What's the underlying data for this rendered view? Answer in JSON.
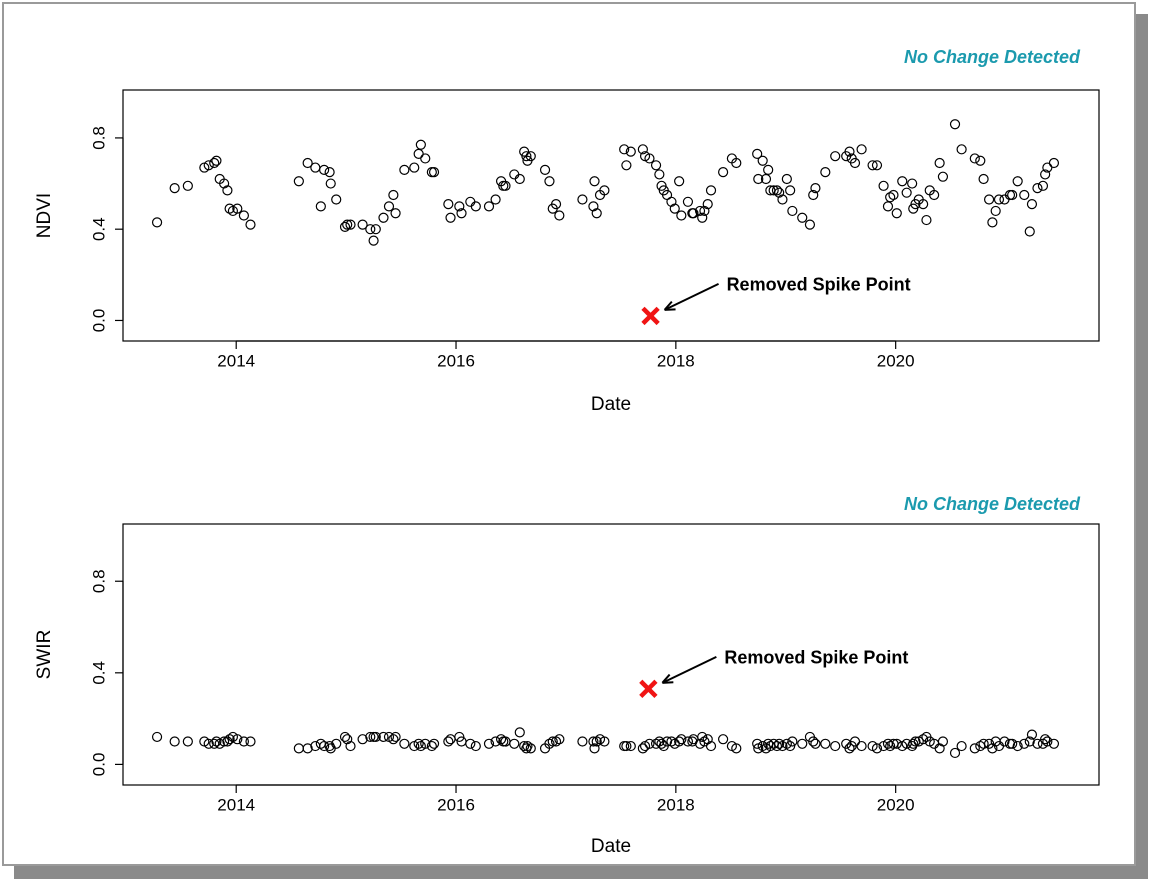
{
  "chart_data": [
    {
      "type": "scatter",
      "status": "No Change Detected",
      "xlabel": "Date",
      "ylabel": "NDVI",
      "color": "#000000",
      "x": [
        2013.28,
        2013.44,
        2013.56,
        2013.71,
        2013.75,
        2013.8,
        2013.82,
        2013.85,
        2013.89,
        2013.92,
        2013.94,
        2013.97,
        2014.01,
        2014.07,
        2014.13,
        2014.57,
        2014.65,
        2014.72,
        2014.77,
        2014.8,
        2014.85,
        2014.86,
        2014.91,
        2014.99,
        2015.01,
        2015.04,
        2015.15,
        2015.22,
        2015.25,
        2015.27,
        2015.34,
        2015.39,
        2015.43,
        2015.45,
        2015.53,
        2015.62,
        2015.66,
        2015.68,
        2015.72,
        2015.78,
        2015.8,
        2015.93,
        2015.95,
        2016.03,
        2016.05,
        2016.13,
        2016.18,
        2016.3,
        2016.36,
        2016.41,
        2016.43,
        2016.45,
        2016.53,
        2016.58,
        2016.62,
        2016.64,
        2016.65,
        2016.68,
        2016.81,
        2016.85,
        2016.88,
        2016.91,
        2016.94,
        2017.15,
        2017.25,
        2017.26,
        2017.28,
        2017.31,
        2017.35,
        2017.53,
        2017.55,
        2017.59,
        2017.7,
        2017.72,
        2017.76,
        2017.82,
        2017.85,
        2017.87,
        2017.89,
        2017.92,
        2017.96,
        2017.99,
        2018.03,
        2018.05,
        2018.11,
        2018.15,
        2018.16,
        2018.22,
        2018.24,
        2018.26,
        2018.29,
        2018.32,
        2018.43,
        2018.51,
        2018.55,
        2018.74,
        2018.75,
        2018.79,
        2018.82,
        2018.84,
        2018.86,
        2018.89,
        2018.92,
        2018.94,
        2018.97,
        2019.01,
        2019.04,
        2019.06,
        2019.15,
        2019.22,
        2019.25,
        2019.27,
        2019.36,
        2019.45,
        2019.55,
        2019.58,
        2019.6,
        2019.63,
        2019.69,
        2019.79,
        2019.83,
        2019.89,
        2019.93,
        2019.95,
        2019.98,
        2020.01,
        2020.06,
        2020.1,
        2020.15,
        2020.16,
        2020.18,
        2020.21,
        2020.25,
        2020.28,
        2020.31,
        2020.35,
        2020.4,
        2020.43,
        2020.54,
        2020.6,
        2020.72,
        2020.77,
        2020.8,
        2020.85,
        2020.88,
        2020.91,
        2020.94,
        2020.99,
        2021.04,
        2021.06,
        2021.11,
        2021.17,
        2021.22,
        2021.24,
        2021.29,
        2021.34,
        2021.36,
        2021.38,
        2021.44
      ],
      "values": [
        0.43,
        0.58,
        0.59,
        0.67,
        0.68,
        0.69,
        0.7,
        0.62,
        0.6,
        0.57,
        0.49,
        0.48,
        0.49,
        0.46,
        0.42,
        0.61,
        0.69,
        0.67,
        0.5,
        0.66,
        0.65,
        0.6,
        0.53,
        0.41,
        0.42,
        0.42,
        0.42,
        0.4,
        0.35,
        0.4,
        0.45,
        0.5,
        0.55,
        0.47,
        0.66,
        0.67,
        0.73,
        0.77,
        0.71,
        0.65,
        0.65,
        0.51,
        0.45,
        0.5,
        0.47,
        0.52,
        0.5,
        0.5,
        0.53,
        0.61,
        0.59,
        0.59,
        0.64,
        0.62,
        0.74,
        0.72,
        0.7,
        0.72,
        0.66,
        0.61,
        0.49,
        0.51,
        0.46,
        0.53,
        0.5,
        0.61,
        0.47,
        0.55,
        0.57,
        0.75,
        0.68,
        0.74,
        0.75,
        0.72,
        0.71,
        0.68,
        0.64,
        0.59,
        0.57,
        0.55,
        0.52,
        0.49,
        0.61,
        0.46,
        0.52,
        0.47,
        0.47,
        0.48,
        0.45,
        0.48,
        0.51,
        0.57,
        0.65,
        0.71,
        0.69,
        0.73,
        0.62,
        0.7,
        0.62,
        0.66,
        0.57,
        0.57,
        0.57,
        0.56,
        0.53,
        0.62,
        0.57,
        0.48,
        0.45,
        0.42,
        0.55,
        0.58,
        0.65,
        0.72,
        0.72,
        0.74,
        0.71,
        0.69,
        0.75,
        0.68,
        0.68,
        0.59,
        0.5,
        0.54,
        0.55,
        0.47,
        0.61,
        0.56,
        0.6,
        0.49,
        0.51,
        0.53,
        0.51,
        0.44,
        0.57,
        0.55,
        0.69,
        0.63,
        0.86,
        0.75,
        0.71,
        0.7,
        0.62,
        0.53,
        0.43,
        0.48,
        0.53,
        0.53,
        0.55,
        0.55,
        0.61,
        0.55,
        0.39,
        0.51,
        0.58,
        0.59,
        0.64,
        0.67,
        0.69
      ],
      "spike": {
        "x": 2017.77,
        "y": 0.02,
        "label": "Removed Spike Point",
        "color": "#f01414"
      },
      "xlim": [
        2012.97,
        2021.85
      ],
      "ylim": [
        -0.09,
        1.01
      ],
      "xticks": [
        2014,
        2016,
        2018,
        2020
      ],
      "yticks": [
        {
          "value": 0,
          "label": "0.0"
        },
        {
          "value": 0.4,
          "label": "0.4"
        },
        {
          "value": 0.8,
          "label": "0.8"
        }
      ]
    },
    {
      "type": "scatter",
      "status": "No Change Detected",
      "xlabel": "Date",
      "ylabel": "SWIR",
      "color": "#000000",
      "x": [
        2013.28,
        2013.44,
        2013.56,
        2013.71,
        2013.75,
        2013.8,
        2013.82,
        2013.85,
        2013.89,
        2013.92,
        2013.94,
        2013.97,
        2014.01,
        2014.07,
        2014.13,
        2014.57,
        2014.65,
        2014.72,
        2014.77,
        2014.8,
        2014.85,
        2014.86,
        2014.91,
        2014.99,
        2015.01,
        2015.04,
        2015.15,
        2015.22,
        2015.25,
        2015.27,
        2015.34,
        2015.39,
        2015.43,
        2015.45,
        2015.53,
        2015.62,
        2015.66,
        2015.68,
        2015.72,
        2015.78,
        2015.8,
        2015.93,
        2015.95,
        2016.03,
        2016.05,
        2016.13,
        2016.18,
        2016.3,
        2016.36,
        2016.41,
        2016.43,
        2016.45,
        2016.53,
        2016.58,
        2016.62,
        2016.64,
        2016.65,
        2016.68,
        2016.81,
        2016.85,
        2016.88,
        2016.91,
        2016.94,
        2017.15,
        2017.25,
        2017.26,
        2017.28,
        2017.31,
        2017.35,
        2017.53,
        2017.55,
        2017.59,
        2017.7,
        2017.72,
        2017.76,
        2017.82,
        2017.85,
        2017.87,
        2017.89,
        2017.92,
        2017.96,
        2017.99,
        2018.03,
        2018.05,
        2018.11,
        2018.15,
        2018.16,
        2018.22,
        2018.24,
        2018.26,
        2018.29,
        2018.32,
        2018.43,
        2018.51,
        2018.55,
        2018.74,
        2018.75,
        2018.79,
        2018.82,
        2018.84,
        2018.86,
        2018.89,
        2018.92,
        2018.94,
        2018.97,
        2019.01,
        2019.04,
        2019.06,
        2019.15,
        2019.22,
        2019.25,
        2019.27,
        2019.36,
        2019.45,
        2019.55,
        2019.58,
        2019.6,
        2019.63,
        2019.69,
        2019.79,
        2019.83,
        2019.89,
        2019.93,
        2019.95,
        2019.98,
        2020.01,
        2020.06,
        2020.1,
        2020.15,
        2020.16,
        2020.18,
        2020.21,
        2020.25,
        2020.28,
        2020.31,
        2020.35,
        2020.4,
        2020.43,
        2020.54,
        2020.6,
        2020.72,
        2020.77,
        2020.8,
        2020.85,
        2020.88,
        2020.91,
        2020.94,
        2020.99,
        2021.04,
        2021.06,
        2021.11,
        2021.17,
        2021.22,
        2021.24,
        2021.29,
        2021.34,
        2021.36,
        2021.38,
        2021.44
      ],
      "values": [
        0.12,
        0.1,
        0.1,
        0.1,
        0.09,
        0.09,
        0.1,
        0.09,
        0.1,
        0.1,
        0.11,
        0.12,
        0.11,
        0.1,
        0.1,
        0.07,
        0.07,
        0.08,
        0.09,
        0.08,
        0.08,
        0.07,
        0.09,
        0.12,
        0.11,
        0.08,
        0.11,
        0.12,
        0.12,
        0.12,
        0.12,
        0.12,
        0.11,
        0.12,
        0.09,
        0.08,
        0.09,
        0.08,
        0.09,
        0.08,
        0.09,
        0.1,
        0.11,
        0.12,
        0.1,
        0.09,
        0.08,
        0.09,
        0.1,
        0.11,
        0.1,
        0.1,
        0.09,
        0.14,
        0.08,
        0.07,
        0.08,
        0.07,
        0.07,
        0.09,
        0.1,
        0.1,
        0.11,
        0.1,
        0.1,
        0.07,
        0.1,
        0.11,
        0.1,
        0.08,
        0.08,
        0.08,
        0.07,
        0.08,
        0.09,
        0.09,
        0.1,
        0.09,
        0.08,
        0.1,
        0.1,
        0.09,
        0.1,
        0.11,
        0.1,
        0.1,
        0.11,
        0.09,
        0.12,
        0.1,
        0.11,
        0.08,
        0.11,
        0.08,
        0.07,
        0.09,
        0.07,
        0.08,
        0.07,
        0.09,
        0.08,
        0.09,
        0.08,
        0.09,
        0.08,
        0.09,
        0.08,
        0.1,
        0.09,
        0.12,
        0.1,
        0.09,
        0.09,
        0.08,
        0.09,
        0.07,
        0.08,
        0.1,
        0.08,
        0.08,
        0.07,
        0.08,
        0.09,
        0.08,
        0.09,
        0.09,
        0.08,
        0.09,
        0.08,
        0.09,
        0.1,
        0.1,
        0.11,
        0.12,
        0.1,
        0.09,
        0.07,
        0.1,
        0.05,
        0.08,
        0.07,
        0.08,
        0.09,
        0.09,
        0.07,
        0.1,
        0.08,
        0.1,
        0.09,
        0.09,
        0.08,
        0.09,
        0.1,
        0.13,
        0.09,
        0.09,
        0.11,
        0.1,
        0.09
      ],
      "spike": {
        "x": 2017.75,
        "y": 0.33,
        "label": "Removed Spike Point",
        "color": "#f01414"
      },
      "xlim": [
        2012.97,
        2021.85
      ],
      "ylim": [
        -0.09,
        1.05
      ],
      "xticks": [
        2014,
        2016,
        2018,
        2020
      ],
      "yticks": [
        {
          "value": 0,
          "label": "0.0"
        },
        {
          "value": 0.4,
          "label": "0.4"
        },
        {
          "value": 0.8,
          "label": "0.8"
        }
      ]
    }
  ]
}
